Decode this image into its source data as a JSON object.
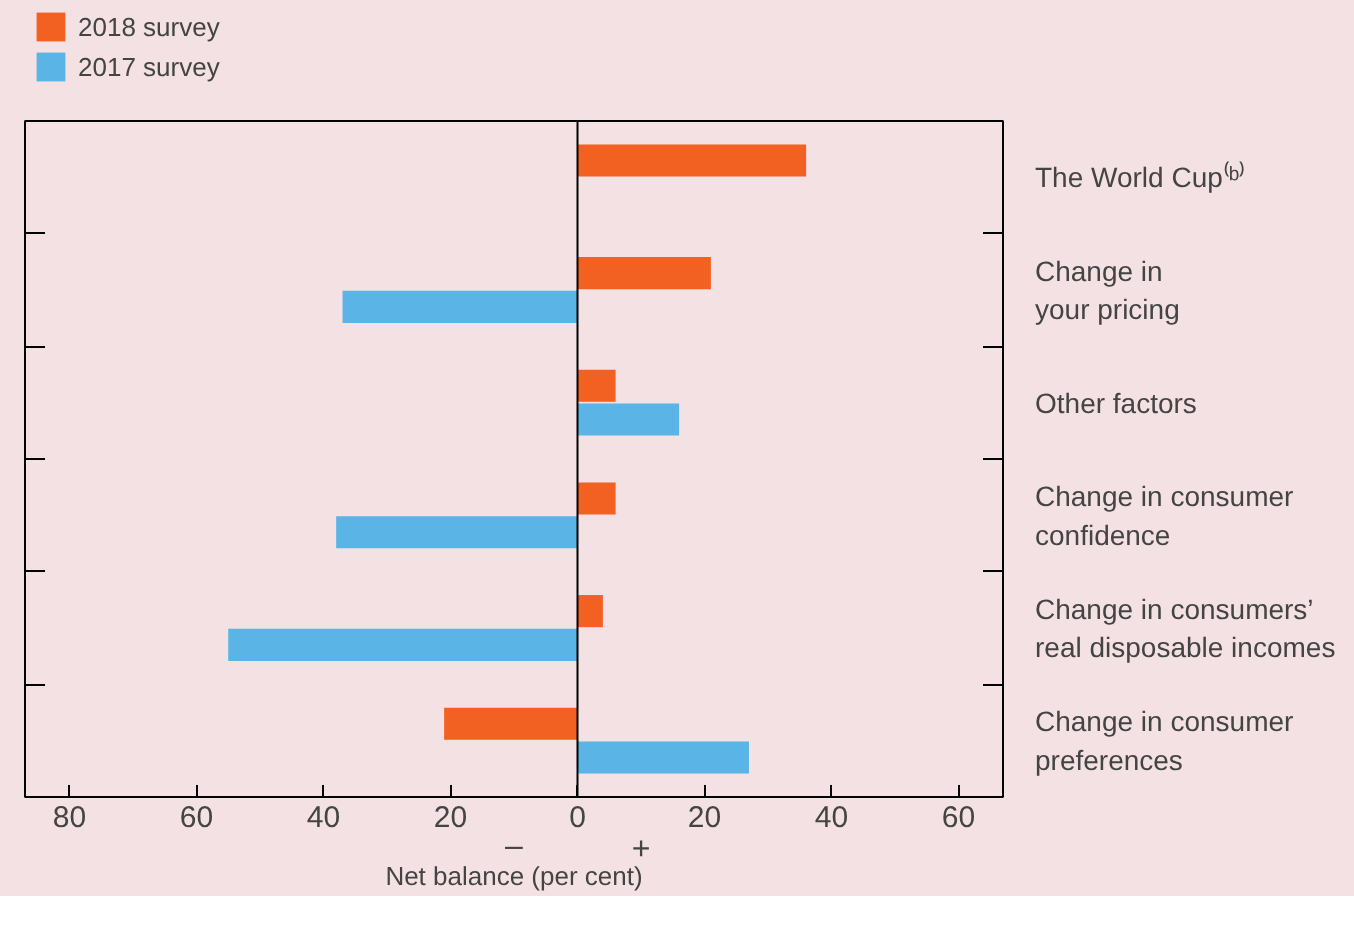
{
  "chart_data": {
    "type": "bar",
    "orientation": "horizontal",
    "xlabel": "Net balance (per cent)",
    "categories": [
      "The World Cup⁽ᵇ⁾",
      "Change in\nyour pricing",
      "Other factors",
      "Change in consumer\nconfidence",
      "Change in consumers’\nreal disposable incomes",
      "Change in consumer\npreferences"
    ],
    "series": [
      {
        "name": "2018 survey",
        "color": "#f26122",
        "values": [
          36,
          21,
          6,
          6,
          4,
          -21
        ]
      },
      {
        "name": "2017 survey",
        "color": "#5ab4e5",
        "values": [
          null,
          -37,
          16,
          -38,
          -55,
          27
        ]
      }
    ],
    "xlim": [
      -87,
      67
    ],
    "xticks": [
      {
        "value": -80,
        "label": "80"
      },
      {
        "value": -60,
        "label": "60"
      },
      {
        "value": -40,
        "label": "40"
      },
      {
        "value": -20,
        "label": "20"
      },
      0,
      20,
      40,
      60
    ],
    "ref_lines": [
      {
        "axis": "x",
        "value": 0,
        "color": "#000000"
      }
    ],
    "annotations": [
      "–",
      "+"
    ],
    "legend": "top left",
    "grid": false
  }
}
